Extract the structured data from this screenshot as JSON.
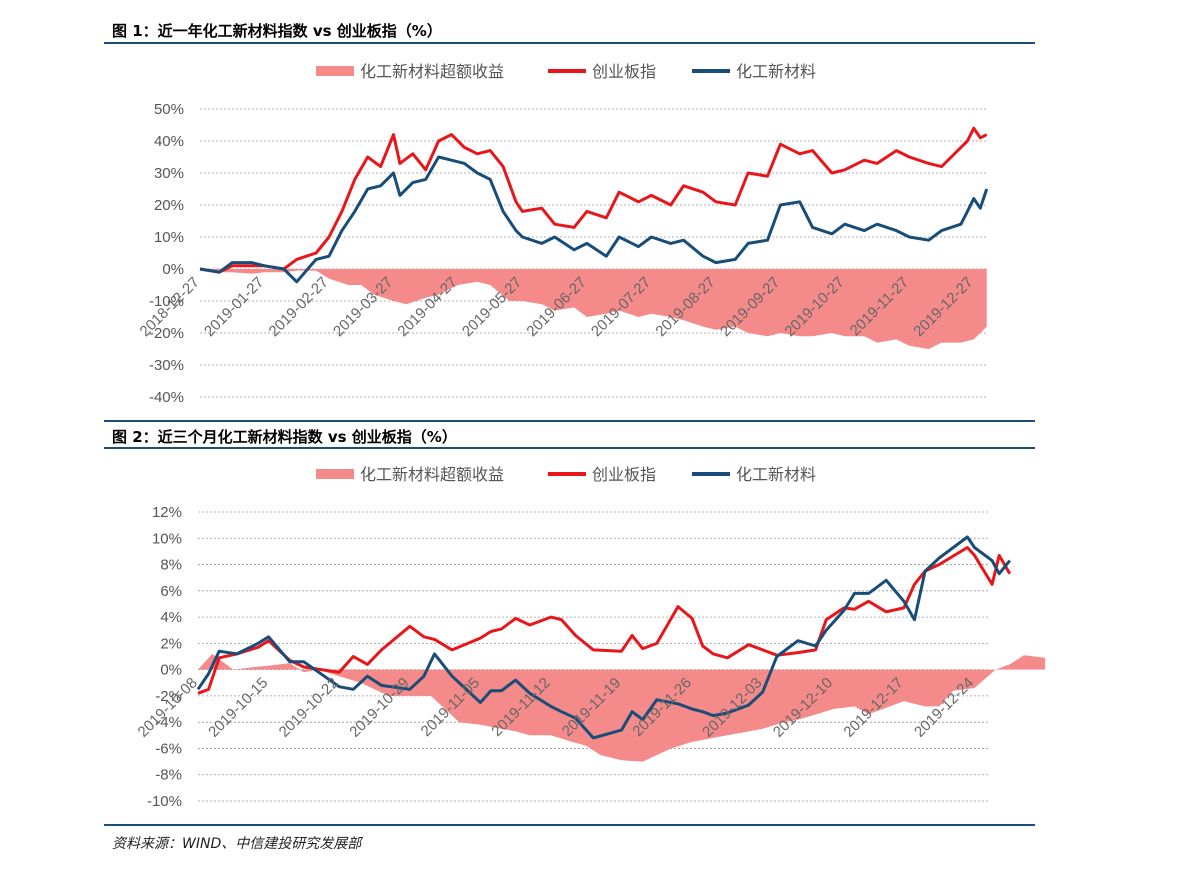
{
  "figures": {
    "fig1_title": "图 1：近一年化工新材料指数 vs 创业板指（%）",
    "fig2_title": "图 2：近三个月化工新材料指数 vs 创业板指（%）"
  },
  "legend": {
    "excess": "化工新材料超额收益",
    "gem": "创业板指",
    "chem": "化工新材料"
  },
  "colors": {
    "excess": "#f48a8a",
    "gem": "#e8161b",
    "chem": "#174d78",
    "rule": "#1b4e7a"
  },
  "source": "资料来源：WIND、中信建投研究发展部",
  "chart_data": [
    {
      "type": "line",
      "title": "图 1：近一年化工新材料指数 vs 创业板指（%）",
      "x_ticks": [
        "2018-12-27",
        "2019-01-27",
        "2019-02-27",
        "2019-03-27",
        "2019-04-27",
        "2019-05-27",
        "2019-06-27",
        "2019-07-27",
        "2019-08-27",
        "2019-09-27",
        "2019-10-27",
        "2019-11-27",
        "2019-12-27"
      ],
      "y_ticks": [
        "50%",
        "40%",
        "30%",
        "20%",
        "10%",
        "0%",
        "-10%",
        "-20%",
        "-30%",
        "-40%"
      ],
      "ylim": [
        -40,
        50
      ],
      "grid": true,
      "legend_position": "top",
      "series": [
        {
          "name": "化工新材料超额收益",
          "kind": "area",
          "t": [
            0,
            0.3,
            0.5,
            0.8,
            1,
            1.3,
            1.5,
            1.8,
            2,
            2.3,
            2.5,
            2.7,
            3,
            3.2,
            3.5,
            3.7,
            4,
            4.3,
            4.5,
            4.8,
            5,
            5.3,
            5.5,
            5.8,
            6,
            6.3,
            6.5,
            6.8,
            7,
            7.3,
            7.5,
            7.8,
            8,
            8.3,
            8.5,
            8.8,
            9,
            9.3,
            9.5,
            9.8,
            10,
            10.3,
            10.5,
            10.8,
            11,
            11.3,
            11.5,
            11.8,
            12,
            12.2
          ],
          "values": [
            0,
            -1,
            -1,
            -1.5,
            -1,
            -1,
            -0.5,
            -0.5,
            -3,
            -5,
            -5,
            -8,
            -10,
            -11,
            -9,
            -8,
            -5,
            -4,
            -5,
            -10,
            -10,
            -11,
            -13,
            -12,
            -15,
            -14,
            -13,
            -15,
            -14,
            -15,
            -16,
            -18,
            -19,
            -18,
            -20,
            -21,
            -20,
            -21,
            -21,
            -20,
            -21,
            -21,
            -23,
            -22,
            -24,
            -25,
            -23,
            -23,
            -22,
            -18
          ]
        },
        {
          "name": "创业板指",
          "kind": "line",
          "t": [
            0,
            0.3,
            0.5,
            0.8,
            1,
            1.3,
            1.5,
            1.8,
            2,
            2.2,
            2.4,
            2.6,
            2.8,
            3,
            3.1,
            3.3,
            3.5,
            3.7,
            3.9,
            4.1,
            4.3,
            4.5,
            4.7,
            4.9,
            5,
            5.3,
            5.5,
            5.8,
            6,
            6.3,
            6.5,
            6.8,
            7,
            7.3,
            7.5,
            7.8,
            8,
            8.3,
            8.5,
            8.8,
            9,
            9.3,
            9.5,
            9.8,
            10,
            10.3,
            10.5,
            10.8,
            11,
            11.3,
            11.5,
            11.8,
            11.9,
            12,
            12.1,
            12.2
          ],
          "values": [
            0,
            -1,
            1,
            1,
            1,
            0,
            3,
            5,
            10,
            18,
            28,
            35,
            32,
            42,
            33,
            36,
            31,
            40,
            42,
            38,
            36,
            37,
            32,
            21,
            18,
            19,
            14,
            13,
            18,
            16,
            24,
            21,
            23,
            20,
            26,
            24,
            21,
            20,
            30,
            29,
            39,
            36,
            37,
            30,
            31,
            34,
            33,
            37,
            35,
            33,
            32,
            38,
            40,
            44,
            41,
            42
          ]
        },
        {
          "name": "化工新材料",
          "kind": "line",
          "t": [
            0,
            0.3,
            0.5,
            0.8,
            1,
            1.3,
            1.5,
            1.8,
            2,
            2.2,
            2.4,
            2.6,
            2.8,
            3,
            3.1,
            3.3,
            3.5,
            3.7,
            3.9,
            4.1,
            4.3,
            4.5,
            4.7,
            4.9,
            5,
            5.3,
            5.5,
            5.8,
            6,
            6.3,
            6.5,
            6.8,
            7,
            7.3,
            7.5,
            7.8,
            8,
            8.3,
            8.5,
            8.8,
            9,
            9.3,
            9.5,
            9.8,
            10,
            10.3,
            10.5,
            10.8,
            11,
            11.3,
            11.5,
            11.8,
            11.9,
            12,
            12.1,
            12.2
          ],
          "values": [
            0,
            -1,
            2,
            2,
            1,
            0,
            -4,
            3,
            4,
            12,
            18,
            25,
            26,
            30,
            23,
            27,
            28,
            35,
            34,
            33,
            30,
            28,
            18,
            12,
            10,
            8,
            10,
            6,
            8,
            4,
            10,
            7,
            10,
            8,
            9,
            4,
            2,
            3,
            8,
            9,
            20,
            21,
            13,
            11,
            14,
            12,
            14,
            12,
            10,
            9,
            12,
            14,
            18,
            22,
            19,
            25
          ]
        }
      ]
    },
    {
      "type": "line",
      "title": "图 2：近三个月化工新材料指数 vs 创业板指（%）",
      "x_ticks": [
        "2019-10-08",
        "2019-10-15",
        "2019-10-22",
        "2019-10-29",
        "2019-11-05",
        "2019-11-12",
        "2019-11-19",
        "2019-11-26",
        "2019-12-03",
        "2019-12-10",
        "2019-12-17",
        "2019-12-24"
      ],
      "y_ticks": [
        "12%",
        "10%",
        "8%",
        "6%",
        "4%",
        "2%",
        "0%",
        "-2%",
        "-4%",
        "-6%",
        "-8%",
        "-10%"
      ],
      "ylim": [
        -10,
        12
      ],
      "grid": true,
      "legend_position": "top",
      "series": [
        {
          "name": "化工新材料超额收益",
          "kind": "area",
          "t": [
            0,
            0.2,
            0.5,
            0.8,
            1,
            1.3,
            1.5,
            1.7,
            2,
            2.3,
            2.5,
            2.7,
            3,
            3.3,
            3.5,
            3.7,
            4,
            4.3,
            4.5,
            4.7,
            5,
            5.3,
            5.5,
            5.7,
            6,
            6.3,
            6.5,
            6.7,
            7,
            7.3,
            7.5,
            7.7,
            8,
            8.3,
            8.5,
            8.7,
            9,
            9.3,
            9.5,
            9.7,
            10,
            10.3,
            10.5,
            10.7,
            11,
            11.3,
            11.5,
            11.7,
            12
          ],
          "values": [
            0,
            1.2,
            0,
            0.2,
            0.3,
            0.5,
            -0.2,
            0,
            -0.5,
            -1,
            -1.5,
            -2,
            -2,
            -2,
            -3,
            -4,
            -4.2,
            -4.5,
            -4.7,
            -5,
            -5,
            -5.5,
            -5.8,
            -6.5,
            -6.9,
            -7,
            -6.5,
            -6,
            -5.5,
            -5.2,
            -5,
            -4.8,
            -4.5,
            -4,
            -3.8,
            -3.5,
            -3,
            -2.8,
            -3.4,
            -3,
            -2.4,
            -2.8,
            -2.8,
            -1.6,
            -1.4,
            0,
            0.4,
            1.1,
            0.9
          ]
        },
        {
          "name": "创业板指",
          "kind": "line",
          "t": [
            0,
            0.15,
            0.3,
            0.55,
            0.85,
            1,
            1.3,
            1.5,
            2,
            2.2,
            2.4,
            2.6,
            3,
            3.2,
            3.35,
            3.6,
            4,
            4.15,
            4.3,
            4.5,
            4.7,
            5,
            5.15,
            5.35,
            5.6,
            6,
            6.15,
            6.3,
            6.5,
            6.8,
            7,
            7.15,
            7.3,
            7.5,
            7.8,
            8,
            8.2,
            8.5,
            8.75,
            8.9,
            9.15,
            9.3,
            9.5,
            9.75,
            10,
            10.15,
            10.3,
            10.5,
            10.9,
            11,
            11.25,
            11.35,
            11.5
          ],
          "values": [
            -1.8,
            -1.5,
            0.9,
            1.2,
            1.7,
            2.2,
            0.7,
            0.2,
            -0.2,
            1,
            0.4,
            1.5,
            3.3,
            2.5,
            2.3,
            1.5,
            2.4,
            2.9,
            3.1,
            3.9,
            3.4,
            4,
            3.8,
            2.6,
            1.5,
            1.4,
            2.6,
            1.6,
            2,
            4.8,
            3.9,
            1.8,
            1.2,
            0.9,
            1.9,
            1.5,
            1.1,
            1.3,
            1.5,
            3.8,
            4.7,
            4.6,
            5.2,
            4.4,
            4.7,
            6.5,
            7.5,
            8,
            9.3,
            8.7,
            6.5,
            8.7,
            7.3
          ]
        },
        {
          "name": "化工新材料",
          "kind": "line",
          "t": [
            0,
            0.15,
            0.3,
            0.55,
            0.85,
            1,
            1.3,
            1.5,
            2,
            2.2,
            2.4,
            2.6,
            3,
            3.2,
            3.35,
            3.6,
            4,
            4.15,
            4.3,
            4.5,
            4.7,
            5,
            5.15,
            5.35,
            5.6,
            6,
            6.15,
            6.3,
            6.5,
            6.8,
            7,
            7.15,
            7.3,
            7.5,
            7.8,
            8,
            8.2,
            8.5,
            8.75,
            8.9,
            9.15,
            9.3,
            9.5,
            9.75,
            10,
            10.15,
            10.3,
            10.5,
            10.9,
            11,
            11.25,
            11.35,
            11.5
          ],
          "values": [
            -1.5,
            -0.3,
            1.4,
            1.2,
            2,
            2.5,
            0.6,
            0.6,
            -1.3,
            -1.5,
            -0.5,
            -1.2,
            -1.5,
            -0.5,
            1.2,
            -0.5,
            -2.5,
            -1.6,
            -1.6,
            -0.8,
            -1.8,
            -2.8,
            -3.2,
            -3.7,
            -5.2,
            -4.6,
            -3.2,
            -3.8,
            -2.3,
            -2.6,
            -3,
            -3.2,
            -3.5,
            -3.3,
            -2.7,
            -1.7,
            1,
            2.2,
            1.8,
            3,
            4.5,
            5.8,
            5.8,
            6.8,
            5.2,
            3.8,
            7.5,
            8.5,
            10.1,
            9.3,
            8.3,
            7.3,
            8.3
          ]
        }
      ]
    }
  ]
}
